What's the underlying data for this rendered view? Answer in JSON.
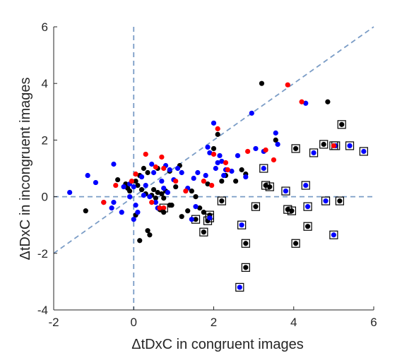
{
  "chart_data": {
    "type": "scatter",
    "title": "",
    "xlabel": "ΔtDxC in congruent images",
    "ylabel": "ΔtDxC in incongruent images",
    "xlim": [
      -2,
      6
    ],
    "ylim": [
      -4,
      6
    ],
    "xticks": [
      -2,
      0,
      2,
      4,
      6
    ],
    "yticks": [
      -4,
      -2,
      0,
      2,
      4,
      6
    ],
    "reference_lines": [
      {
        "name": "x-zero",
        "type": "vertical",
        "x": 0
      },
      {
        "name": "y-zero",
        "type": "horizontal",
        "y": 0
      },
      {
        "name": "identity",
        "type": "diagonal",
        "slope": 1,
        "intercept": 0
      }
    ],
    "colors": {
      "black": "#000000",
      "blue": "#0000ff",
      "red": "#ff0000",
      "reference": "#7a9cc6",
      "axis": "#262626"
    },
    "series": [
      {
        "name": "black",
        "color": "#000000",
        "points": [
          [
            -1.2,
            -0.5
          ],
          [
            -0.4,
            0.6
          ],
          [
            -0.15,
            0.3
          ],
          [
            -0.2,
            0.45
          ],
          [
            0.05,
            0.55
          ],
          [
            0.1,
            0.4
          ],
          [
            0.2,
            0.25
          ],
          [
            0.3,
            0.1
          ],
          [
            0.5,
            0.25
          ],
          [
            0.6,
            0.15
          ],
          [
            0.45,
            0.05
          ],
          [
            0.55,
            -0.05
          ],
          [
            0.7,
            0.1
          ],
          [
            0.75,
            -0.05
          ],
          [
            0.8,
            0.2
          ],
          [
            0.9,
            -0.3
          ],
          [
            1.05,
            0.35
          ],
          [
            1.15,
            1.1
          ],
          [
            1.2,
            -0.7
          ],
          [
            1.35,
            -0.5
          ],
          [
            1.45,
            0.2
          ],
          [
            1.55,
            0.0
          ],
          [
            1.65,
            -0.4
          ],
          [
            1.75,
            -0.55
          ],
          [
            1.85,
            0.45
          ],
          [
            2.0,
            1.7
          ],
          [
            2.1,
            2.2
          ],
          [
            2.2,
            0.55
          ],
          [
            2.3,
            0.75
          ],
          [
            2.55,
            0.55
          ],
          [
            2.7,
            0.95
          ],
          [
            2.8,
            0.8
          ],
          [
            3.2,
            4.0
          ],
          [
            3.55,
            2.0
          ],
          [
            4.85,
            3.35
          ],
          [
            0.15,
            -1.55
          ],
          [
            0.35,
            -1.2
          ],
          [
            0.4,
            -1.35
          ],
          [
            0.05,
            -0.65
          ],
          [
            0.65,
            -0.45
          ],
          [
            0.75,
            -0.55
          ],
          [
            0.95,
            -0.3
          ],
          [
            0.15,
            0.75
          ],
          [
            0.35,
            0.85
          ],
          [
            0.6,
            1.0
          ],
          [
            0.25,
            1.0
          ],
          [
            0.9,
            0.9
          ],
          [
            -0.1,
            0.2
          ]
        ]
      },
      {
        "name": "blue",
        "color": "#0000ff",
        "points": [
          [
            -1.6,
            0.15
          ],
          [
            -1.15,
            0.75
          ],
          [
            -0.95,
            0.5
          ],
          [
            -0.5,
            1.15
          ],
          [
            -0.75,
            -0.2
          ],
          [
            -0.55,
            -0.4
          ],
          [
            -0.5,
            -0.2
          ],
          [
            -0.3,
            -0.55
          ],
          [
            -0.25,
            0.35
          ],
          [
            -0.1,
            0.45
          ],
          [
            0.0,
            0.35
          ],
          [
            0.05,
            -0.3
          ],
          [
            0.1,
            -0.55
          ],
          [
            0.0,
            -0.8
          ],
          [
            0.2,
            0.7
          ],
          [
            0.3,
            0.4
          ],
          [
            0.4,
            0.0
          ],
          [
            0.45,
            1.15
          ],
          [
            0.5,
            0.85
          ],
          [
            0.6,
            -0.4
          ],
          [
            0.7,
            0.55
          ],
          [
            0.75,
            0.3
          ],
          [
            0.8,
            1.1
          ],
          [
            0.85,
            0.15
          ],
          [
            0.9,
            0.95
          ],
          [
            1.0,
            0.6
          ],
          [
            1.1,
            1.0
          ],
          [
            1.2,
            0.85
          ],
          [
            1.35,
            0.3
          ],
          [
            1.45,
            -0.8
          ],
          [
            1.5,
            0.65
          ],
          [
            1.55,
            -0.35
          ],
          [
            1.6,
            0.85
          ],
          [
            1.8,
            0.75
          ],
          [
            1.85,
            1.75
          ],
          [
            1.9,
            1.55
          ],
          [
            2.0,
            2.6
          ],
          [
            2.05,
            1.0
          ],
          [
            2.1,
            1.2
          ],
          [
            2.15,
            1.45
          ],
          [
            2.2,
            1.25
          ],
          [
            2.25,
            0.75
          ],
          [
            2.3,
            0.95
          ],
          [
            2.45,
            0.9
          ],
          [
            2.6,
            1.45
          ],
          [
            2.8,
            0.7
          ],
          [
            2.95,
            2.95
          ],
          [
            3.05,
            1.7
          ],
          [
            3.25,
            1.6
          ],
          [
            3.55,
            2.25
          ],
          [
            3.6,
            1.85
          ],
          [
            4.3,
            3.3
          ],
          [
            -0.1,
            0.0
          ],
          [
            0.25,
            0.05
          ],
          [
            0.55,
            -0.2
          ]
        ]
      },
      {
        "name": "red",
        "color": "#ff0000",
        "points": [
          [
            -0.75,
            -0.2
          ],
          [
            -0.45,
            0.4
          ],
          [
            -0.05,
            0.55
          ],
          [
            0.05,
            0.8
          ],
          [
            0.3,
            1.5
          ],
          [
            0.45,
            -0.2
          ],
          [
            0.55,
            1.05
          ],
          [
            0.65,
            -0.4
          ],
          [
            0.7,
            1.4
          ],
          [
            0.75,
            1.0
          ],
          [
            1.05,
            0.55
          ],
          [
            1.3,
            0.2
          ],
          [
            1.75,
            0.55
          ],
          [
            1.95,
            0.4
          ],
          [
            2.0,
            1.5
          ],
          [
            2.1,
            2.4
          ],
          [
            2.35,
            0.95
          ],
          [
            2.3,
            1.2
          ],
          [
            2.85,
            1.6
          ],
          [
            3.3,
            1.65
          ],
          [
            3.5,
            1.3
          ],
          [
            3.85,
            3.95
          ],
          [
            4.2,
            3.35
          ]
        ]
      }
    ],
    "boxed_points": [
      {
        "color": "#000000",
        "points": [
          [
            1.55,
            -0.8
          ],
          [
            1.75,
            -1.25
          ],
          [
            1.85,
            -0.85
          ],
          [
            1.9,
            -0.65
          ],
          [
            2.2,
            -0.15
          ],
          [
            2.8,
            -1.65
          ],
          [
            2.8,
            -2.5
          ],
          [
            3.05,
            -0.35
          ],
          [
            3.3,
            0.4
          ],
          [
            3.4,
            0.35
          ],
          [
            3.85,
            -0.45
          ],
          [
            3.95,
            -0.5
          ],
          [
            4.05,
            1.7
          ],
          [
            4.05,
            -1.65
          ],
          [
            4.35,
            -1.05
          ],
          [
            4.75,
            1.85
          ],
          [
            5.2,
            2.55
          ],
          [
            5.15,
            -0.15
          ]
        ]
      },
      {
        "color": "#0000ff",
        "points": [
          [
            1.9,
            -0.75
          ],
          [
            2.7,
            -1.0
          ],
          [
            2.65,
            -3.2
          ],
          [
            3.25,
            1.0
          ],
          [
            3.8,
            0.2
          ],
          [
            4.3,
            0.4
          ],
          [
            4.35,
            -0.35
          ],
          [
            4.5,
            1.55
          ],
          [
            4.8,
            -0.15
          ],
          [
            5.05,
            1.8
          ],
          [
            5.0,
            -1.35
          ],
          [
            5.4,
            1.8
          ],
          [
            5.75,
            1.6
          ]
        ]
      },
      {
        "color": "#ff0000",
        "points": [
          [
            0.75,
            -0.4
          ],
          [
            5.0,
            1.8
          ]
        ]
      }
    ]
  }
}
